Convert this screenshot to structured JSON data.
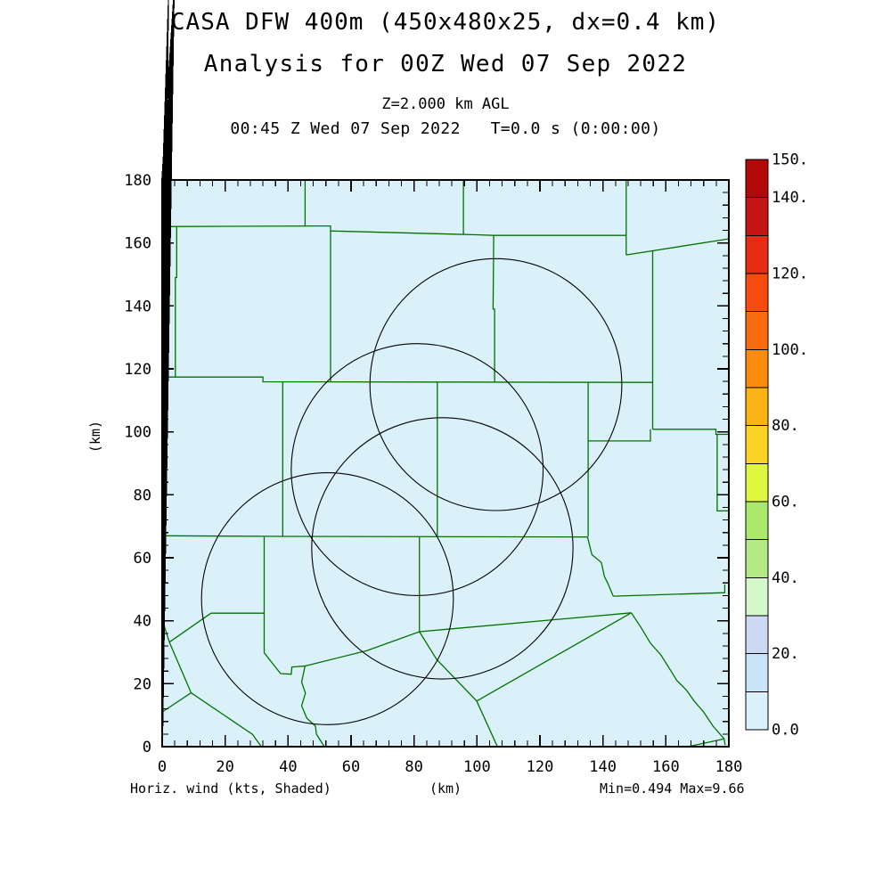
{
  "header": {
    "title_line1": "CASA DFW 400m (450x480x25, dx=0.4 km)",
    "title_line2": "Analysis for 00Z Wed 07 Sep 2022",
    "level_line": "Z=2.000 km AGL",
    "time_line": "00:45 Z Wed 07 Sep 2022   T=0.0 s (0:00:00)"
  },
  "footer": {
    "field_label": "Horiz. wind (kts, Shaded)",
    "x_unit_label": "(km)",
    "minmax_label": "Min=0.494 Max=9.66"
  },
  "chart_data": {
    "type": "map",
    "title": "CASA DFW 400m (450x480x25, dx=0.4 km)",
    "subtitle": "Analysis for 00Z Wed 07 Sep 2022",
    "level": "Z=2.000 km AGL",
    "valid_time": "00:45 Z Wed 07 Sep 2022",
    "forecast_time": "T=0.0 s (0:00:00)",
    "field_name": "Horiz. wind (kts, Shaded)",
    "field_min": 0.494,
    "field_max": 9.66,
    "xlabel": "(km)",
    "ylabel": "(km)",
    "x_range": [
      0,
      180
    ],
    "y_range": [
      0,
      180
    ],
    "x_major_tick": 20,
    "x_minor_tick": 4,
    "y_major_tick": 20,
    "y_minor_tick": 4,
    "x_tick_labels": [
      "0",
      "20",
      "40",
      "60",
      "80",
      "100",
      "120",
      "140",
      "160",
      "180"
    ],
    "y_tick_labels": [
      "0",
      "20",
      "40",
      "60",
      "80",
      "100",
      "120",
      "140",
      "160",
      "180"
    ],
    "map_background_color": "#dbf1f9",
    "county_line_color": "#007200",
    "circle_color": "#000000",
    "radar_range_circles_km": [
      {
        "cx": 106.0,
        "cy": 115.0,
        "r": 40.0
      },
      {
        "cx": 81.0,
        "cy": 88.0,
        "r": 40.0
      },
      {
        "cx": 89.0,
        "cy": 63.0,
        "r": 41.5
      },
      {
        "cx": 52.5,
        "cy": 47.0,
        "r": 40.0
      }
    ],
    "county_boundaries_km": [
      [
        [
          45.4,
          180
        ],
        [
          45.4,
          165.2
        ]
      ],
      [
        [
          0,
          165.2
        ],
        [
          49,
          165.4
        ],
        [
          53.5,
          165.4
        ],
        [
          53.5,
          163.8
        ],
        [
          99.9,
          162.6
        ],
        [
          105.3,
          162.4
        ],
        [
          147.4,
          162.4
        ]
      ],
      [
        [
          95.7,
          180
        ],
        [
          95.7,
          162.7
        ]
      ],
      [
        [
          147.4,
          180
        ],
        [
          147.4,
          156.2
        ]
      ],
      [
        [
          147.4,
          156.2
        ],
        [
          179.9,
          161.3
        ]
      ],
      [
        [
          4.6,
          165.3
        ],
        [
          4.6,
          149
        ],
        [
          4.2,
          149
        ],
        [
          4.2,
          117.4
        ]
      ],
      [
        [
          0,
          117.4
        ],
        [
          32,
          117.4
        ],
        [
          32,
          115.9
        ],
        [
          87.4,
          115.8
        ],
        [
          155.8,
          115.7
        ]
      ],
      [
        [
          53.5,
          163.8
        ],
        [
          53.5,
          115.8
        ]
      ],
      [
        [
          38.3,
          115.9
        ],
        [
          38.3,
          66.7
        ]
      ],
      [
        [
          0,
          67
        ],
        [
          38.3,
          66.8
        ],
        [
          135.1,
          66.6
        ]
      ],
      [
        [
          105.3,
          162.4
        ],
        [
          105.1,
          139
        ],
        [
          105.6,
          139
        ],
        [
          105.6,
          115.7
        ]
      ],
      [
        [
          155.8,
          157.4
        ],
        [
          155.8,
          115.7
        ],
        [
          155.8,
          100.8
        ]
      ],
      [
        [
          135.3,
          115.7
        ],
        [
          135.3,
          66.7
        ]
      ],
      [
        [
          87.4,
          115.8
        ],
        [
          87.4,
          66.5
        ]
      ],
      [
        [
          81.7,
          66.5
        ],
        [
          81.7,
          36.5
        ]
      ],
      [
        [
          155.8,
          100.8
        ],
        [
          175.9,
          100.8
        ],
        [
          175.9,
          99.2
        ],
        [
          180,
          99.2
        ]
      ],
      [
        [
          135.3,
          97.1
        ],
        [
          155.1,
          97.1
        ],
        [
          155.1,
          100.8
        ]
      ],
      [
        [
          176.3,
          99.2
        ],
        [
          176.3,
          74.9
        ],
        [
          180,
          74.9
        ]
      ],
      [
        [
          135.1,
          66.6
        ],
        [
          136.5,
          61
        ],
        [
          139.5,
          58.5
        ],
        [
          140.5,
          54
        ],
        [
          141.5,
          52
        ],
        [
          143.3,
          47.8
        ]
      ],
      [
        [
          143.3,
          47.8
        ],
        [
          178.7,
          48.9
        ],
        [
          178.7,
          51.5
        ]
      ],
      [
        [
          45.4,
          25.6
        ],
        [
          65,
          30.5
        ],
        [
          81.7,
          36.5
        ],
        [
          149,
          42.5
        ]
      ],
      [
        [
          81.7,
          36.5
        ],
        [
          87.2,
          27.7
        ],
        [
          99.9,
          14.5
        ],
        [
          106.5,
          0
        ]
      ],
      [
        [
          99.9,
          14.5
        ],
        [
          149,
          42.5
        ]
      ],
      [
        [
          149,
          42.5
        ],
        [
          152,
          38
        ],
        [
          155,
          33
        ],
        [
          158.5,
          29
        ],
        [
          161,
          25
        ],
        [
          163.5,
          21
        ],
        [
          166.5,
          18
        ],
        [
          169,
          14.5
        ],
        [
          172,
          11
        ],
        [
          175,
          6.5
        ],
        [
          178.5,
          2.5
        ],
        [
          178.8,
          0.5
        ]
      ],
      [
        [
          167,
          0
        ],
        [
          178.5,
          2.5
        ]
      ],
      [
        [
          32.4,
          66.6
        ],
        [
          32.4,
          29.8
        ]
      ],
      [
        [
          15.5,
          42.4
        ],
        [
          32.4,
          42.4
        ]
      ],
      [
        [
          15.5,
          42.4
        ],
        [
          2.3,
          33.2
        ]
      ],
      [
        [
          0,
          40.3
        ],
        [
          2.3,
          33.2
        ]
      ],
      [
        [
          2.3,
          33.2
        ],
        [
          9.2,
          17.1
        ]
      ],
      [
        [
          0,
          11
        ],
        [
          9.2,
          17.1
        ]
      ],
      [
        [
          9.2,
          17.1
        ],
        [
          28.7,
          3.9
        ],
        [
          31.5,
          0
        ]
      ],
      [
        [
          32.4,
          29.8
        ],
        [
          37.6,
          23.2
        ],
        [
          41,
          23
        ],
        [
          41.2,
          25.3
        ],
        [
          45.4,
          25.6
        ],
        [
          44.3,
          20.5
        ],
        [
          45.5,
          17
        ],
        [
          44.3,
          13
        ],
        [
          46,
          9
        ],
        [
          48.7,
          6.5
        ],
        [
          49,
          4
        ],
        [
          51.5,
          0
        ]
      ]
    ],
    "colorbar": {
      "min": 0,
      "max": 150,
      "interval": 10,
      "cell_colors_bottom_to_top": [
        "#dbf1f9",
        "#c9e4f7",
        "#cdd8f3",
        "#d5f8cb",
        "#b4ea85",
        "#abe96d",
        "#dff73e",
        "#fdd227",
        "#fcb316",
        "#fb8c0e",
        "#fa6c10",
        "#f94b10",
        "#e62d13",
        "#c51414",
        "#b10808"
      ],
      "labels": [
        {
          "value": 0,
          "text": "0.0"
        },
        {
          "value": 20,
          "text": "20."
        },
        {
          "value": 40,
          "text": "40."
        },
        {
          "value": 60,
          "text": "60."
        },
        {
          "value": 80,
          "text": "80."
        },
        {
          "value": 100,
          "text": "100."
        },
        {
          "value": 120,
          "text": "120."
        },
        {
          "value": 140,
          "text": "140."
        },
        {
          "value": 150,
          "text": "150."
        }
      ]
    }
  }
}
